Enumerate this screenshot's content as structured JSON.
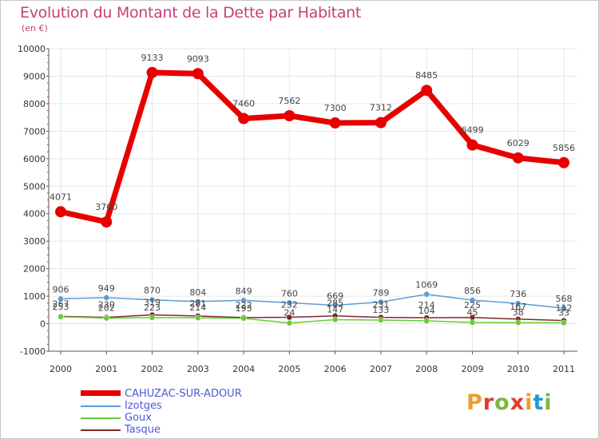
{
  "header": {
    "title": "Evolution du Montant de la Dette par Habitant",
    "subtitle": "(en €)"
  },
  "logo": {
    "text": "Proxiti",
    "colors": [
      "#f29a2a",
      "#e4392d",
      "#7cb83e",
      "#e4392d",
      "#f29a2a",
      "#1f9ad6",
      "#7cb83e"
    ]
  },
  "chart_data": {
    "type": "line",
    "title": "Evolution du Montant de la Dette par Habitant",
    "subtitle": "(en €)",
    "x": [
      "2000",
      "2001",
      "2002",
      "2003",
      "2004",
      "2005",
      "2006",
      "2007",
      "2008",
      "2009",
      "2010",
      "2011"
    ],
    "ylim": [
      -1000,
      10000
    ],
    "yticks": [
      -1000,
      0,
      1000,
      2000,
      3000,
      4000,
      5000,
      6000,
      7000,
      8000,
      9000,
      10000
    ],
    "grid": true,
    "legend_position": "bottom-left",
    "series": [
      {
        "name": "CAHUZAC-SUR-ADOUR",
        "color": "#e60000",
        "values": [
          4071,
          3700,
          9133,
          9093,
          7460,
          7562,
          7300,
          7312,
          8485,
          6499,
          6029,
          5856
        ],
        "labels": [
          "4071",
          "3700",
          "9133",
          "9093",
          "7460",
          "7562",
          "7300",
          "7312",
          "8485",
          "6499",
          "6029",
          "5856"
        ]
      },
      {
        "name": "Izotges",
        "color": "#5b9bd5",
        "values": [
          906,
          949,
          870,
          804,
          849,
          760,
          669,
          789,
          1069,
          856,
          736,
          568
        ],
        "labels": [
          "906",
          "949",
          "870",
          "804",
          "849",
          "760",
          "669",
          "789",
          "1069",
          "856",
          "736",
          "568"
        ]
      },
      {
        "name": "Goux",
        "color": "#66cc33",
        "values": [
          253,
          202,
          223,
          214,
          193,
          24,
          147,
          133,
          104,
          45,
          38,
          33
        ],
        "labels": [
          "253",
          "202",
          "223",
          "214",
          "193",
          "24",
          "147",
          "133",
          "104",
          "45",
          "38",
          "33"
        ]
      },
      {
        "name": "Tasque",
        "color": "#7b2a2a",
        "values": [
          267,
          230,
          319,
          281,
          222,
          232,
          285,
          231,
          214,
          225,
          167,
          112
        ],
        "labels": [
          "267",
          "230",
          "319",
          "281",
          "222",
          "232",
          "285",
          "231",
          "214",
          "225",
          "167",
          "112"
        ]
      }
    ]
  }
}
